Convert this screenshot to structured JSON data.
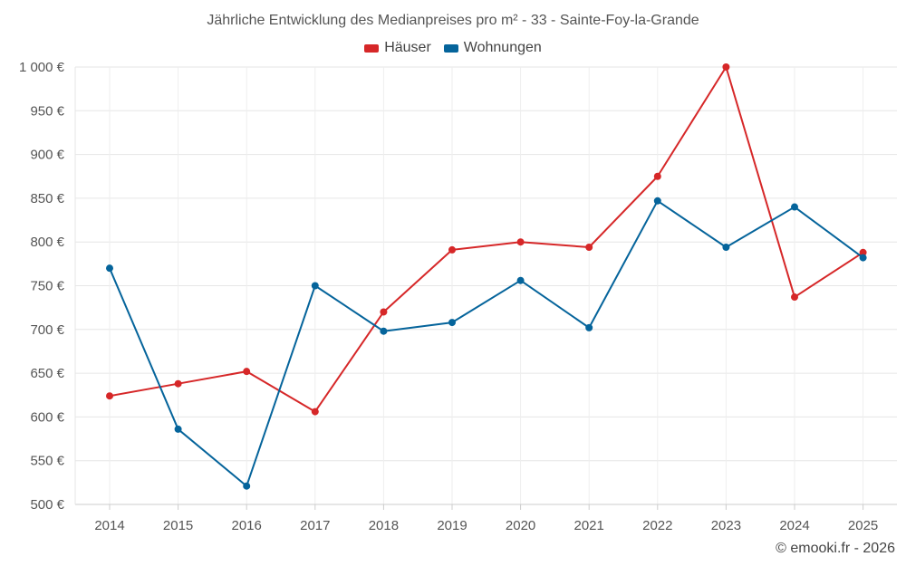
{
  "chart_data": {
    "type": "line",
    "title": "Jährliche Entwicklung des Medianpreises pro m² - 33 - Sainte-Foy-la-Grande",
    "categories": [
      "2014",
      "2015",
      "2016",
      "2017",
      "2018",
      "2019",
      "2020",
      "2021",
      "2022",
      "2023",
      "2024",
      "2025"
    ],
    "series": [
      {
        "name": "Häuser",
        "color": "#d62728",
        "values": [
          624,
          638,
          652,
          606,
          720,
          791,
          800,
          794,
          875,
          1000,
          737,
          788
        ]
      },
      {
        "name": "Wohnungen",
        "color": "#05649b",
        "values": [
          770,
          586,
          521,
          750,
          698,
          708,
          756,
          702,
          847,
          794,
          840,
          782
        ]
      }
    ],
    "ylim": [
      500,
      1000
    ],
    "yticks": [
      500,
      550,
      600,
      650,
      700,
      750,
      800,
      850,
      900,
      950,
      1000
    ],
    "ytick_labels": [
      "500 €",
      "550 €",
      "600 €",
      "650 €",
      "700 €",
      "750 €",
      "800 €",
      "850 €",
      "900 €",
      "950 €",
      "1 000 €"
    ],
    "grid": true,
    "legend_position": "top-center",
    "credit": "© emooki.fr - 2026"
  }
}
